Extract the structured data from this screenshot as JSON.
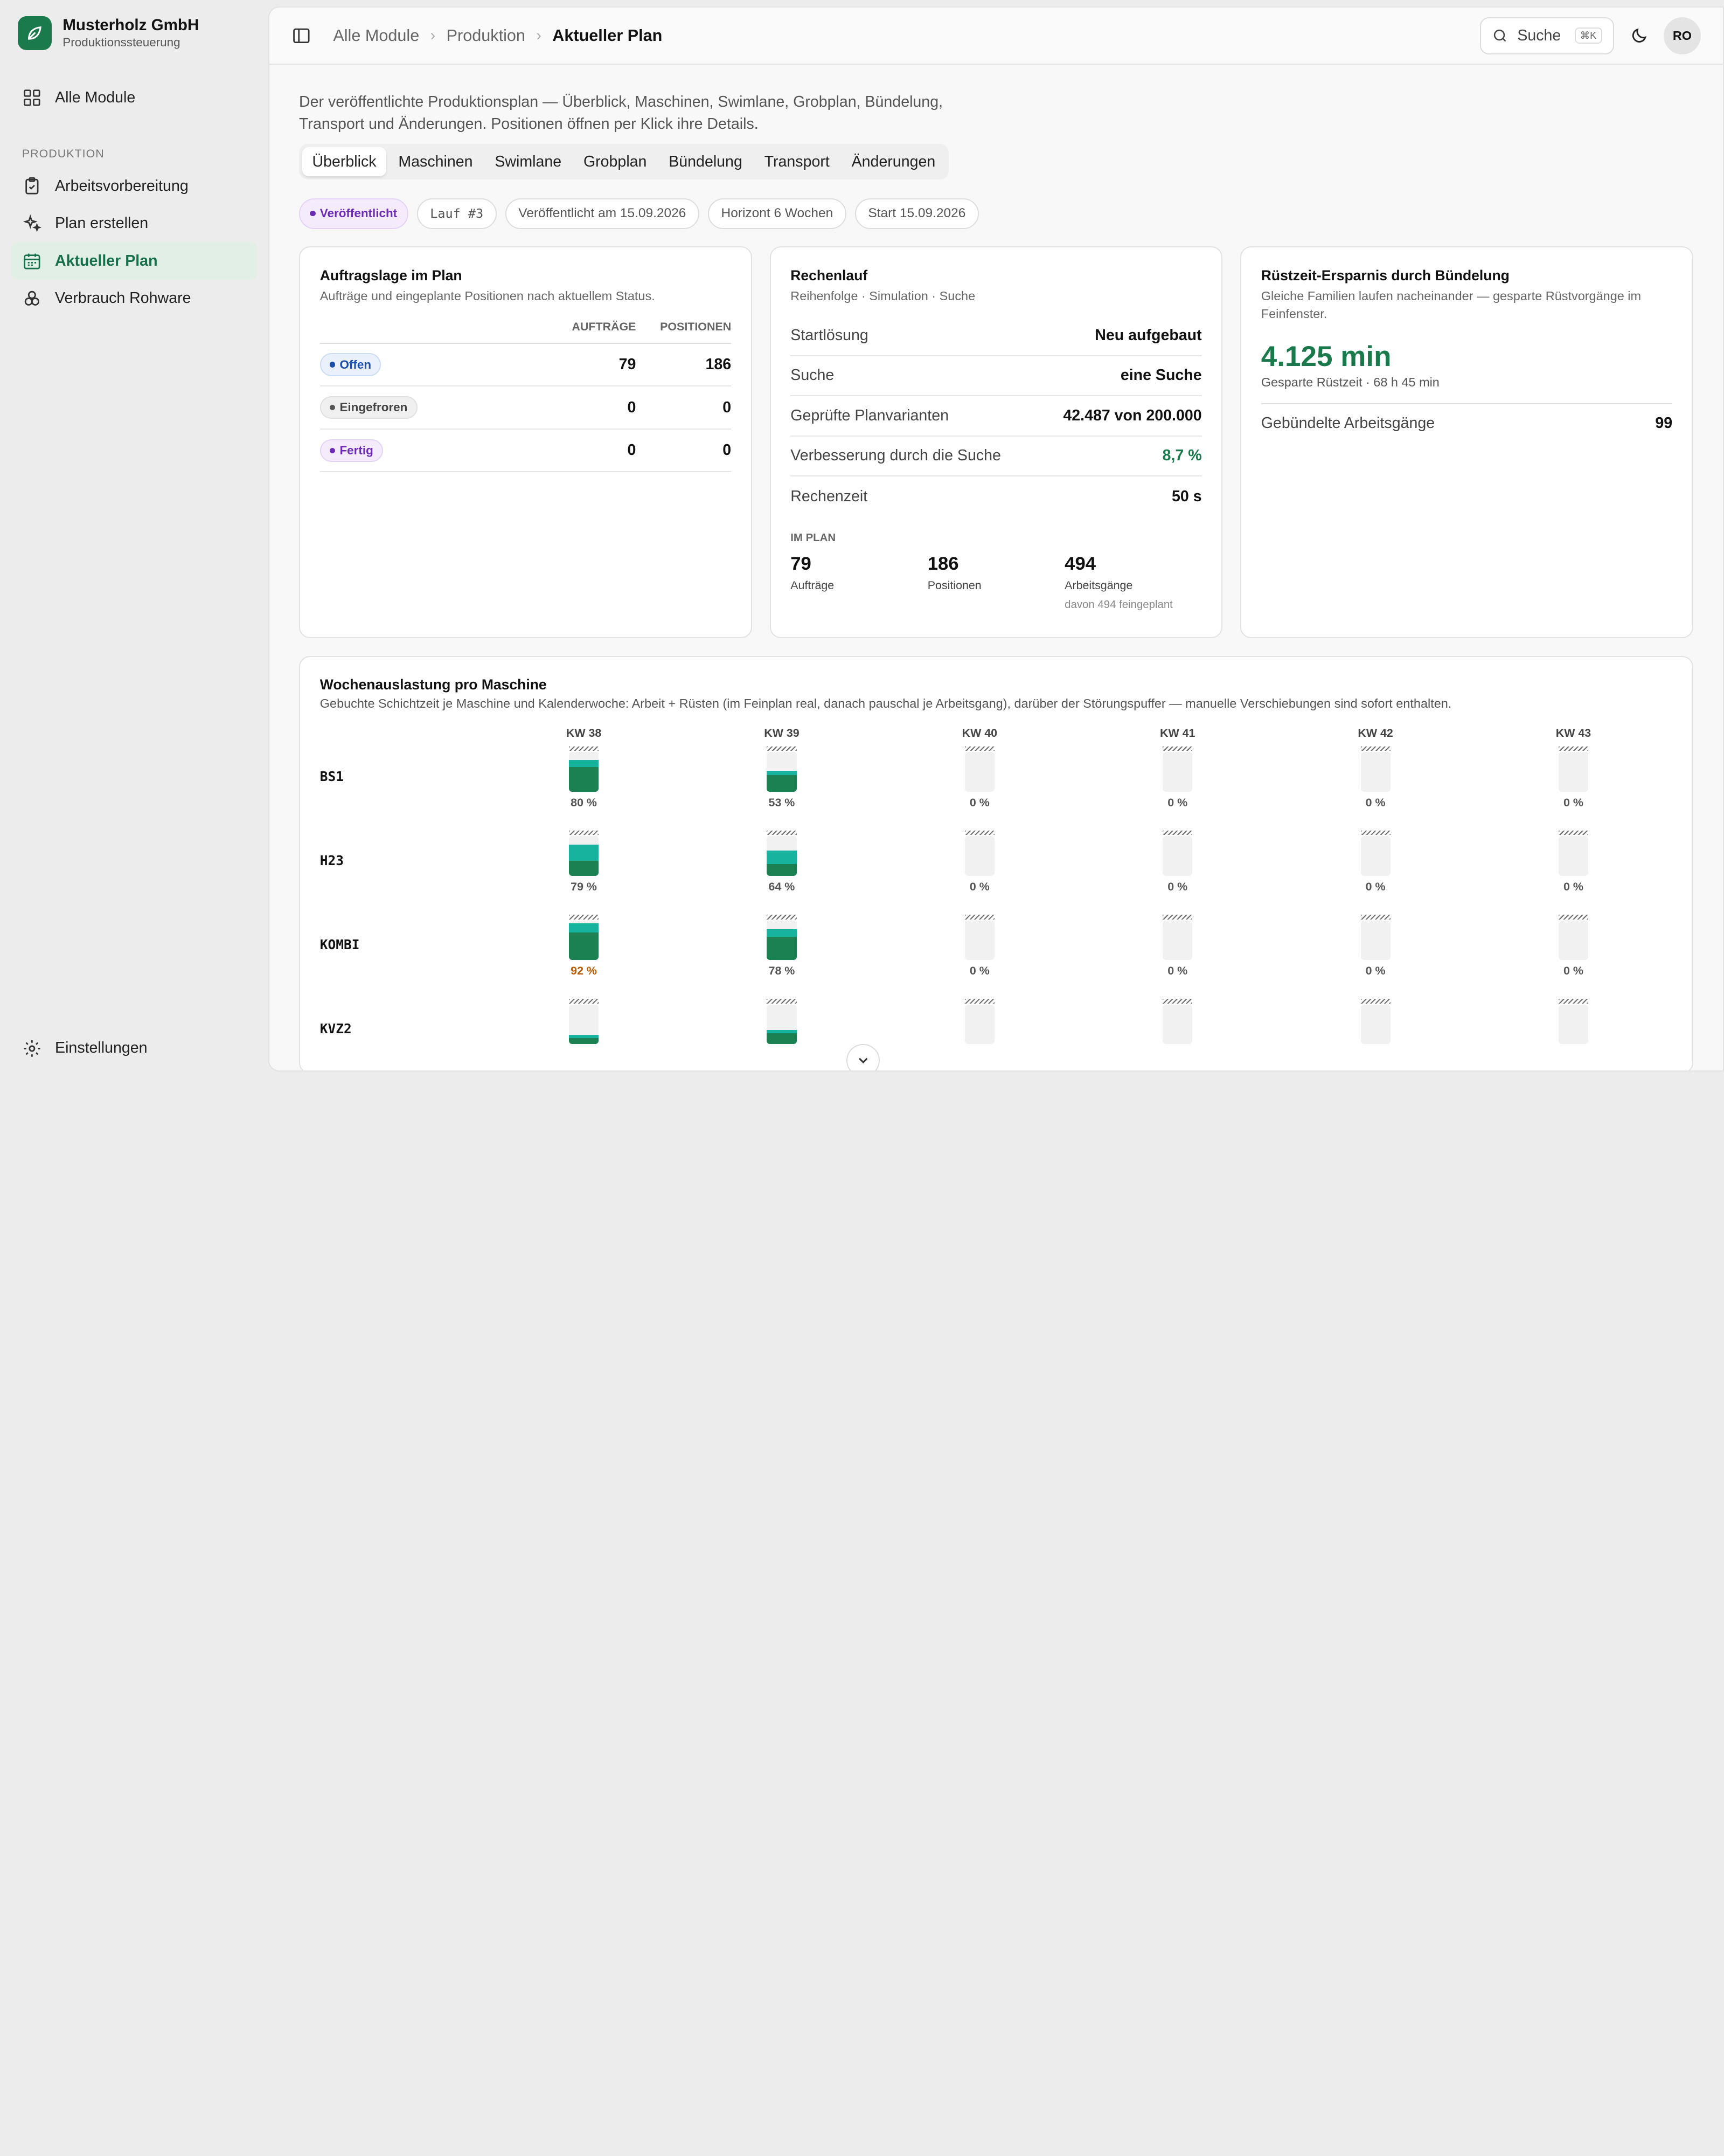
{
  "brand": {
    "name": "Musterholz GmbH",
    "subtitle": "Produktionssteuerung"
  },
  "nav": {
    "all_modules": "Alle Module",
    "section": "PRODUKTION",
    "items": [
      "Arbeitsvorbereitung",
      "Plan erstellen",
      "Aktueller Plan",
      "Verbrauch Rohware"
    ],
    "settings": "Einstellungen"
  },
  "breadcrumb": [
    "Alle Module",
    "Produktion",
    "Aktueller Plan"
  ],
  "search": {
    "label": "Suche",
    "shortcut": "⌘K"
  },
  "user": {
    "initials": "RO"
  },
  "intro": "Der veröffentlichte Produktionsplan — Überblick, Maschinen, Swimlane, Grobplan, Bündelung, Transport und Änderungen. Positionen öffnen per Klick ihre Details.",
  "tabs": [
    "Überblick",
    "Maschinen",
    "Swimlane",
    "Grobplan",
    "Bündelung",
    "Transport",
    "Änderungen"
  ],
  "chips": {
    "status": "Veröffentlicht",
    "run": "Lauf #3",
    "published": "Veröffentlicht am 15.09.2026",
    "horizon": "Horizont 6 Wochen",
    "start": "Start 15.09.2026"
  },
  "orders": {
    "title": "Auftragslage im Plan",
    "subtitle": "Aufträge und eingeplante Positionen nach aktuellem Status.",
    "col_orders": "AUFTRÄGE",
    "col_positions": "POSITIONEN",
    "rows": [
      {
        "status": "Offen",
        "orders": "79",
        "positions": "186"
      },
      {
        "status": "Eingefroren",
        "orders": "0",
        "positions": "0"
      },
      {
        "status": "Fertig",
        "orders": "0",
        "positions": "0"
      }
    ]
  },
  "run": {
    "title": "Rechenlauf",
    "subtitle": "Reihenfolge · Simulation · Suche",
    "rows": [
      {
        "k": "Startlösung",
        "v": "Neu aufgebaut"
      },
      {
        "k": "Suche",
        "v": "eine Suche"
      },
      {
        "k": "Geprüfte Planvarianten",
        "v": "42.487 von 200.000"
      },
      {
        "k": "Verbesserung durch die Suche",
        "v": "8,7 %"
      },
      {
        "k": "Rechenzeit",
        "v": "50 s"
      }
    ],
    "plan_label": "IM PLAN",
    "orders": "79",
    "orders_label": "Aufträge",
    "positions": "186",
    "positions_label": "Positionen",
    "ops": "494",
    "ops_label": "Arbeitsgänge",
    "ops_note": "davon 494 feingeplant"
  },
  "bundling": {
    "title": "Rüstzeit-Ersparnis durch Bündelung",
    "subtitle": "Gleiche Familien laufen nacheinander — gesparte Rüstvorgänge im Feinfenster.",
    "saved": "4.125 min",
    "saved_sub": "Gesparte Rüstzeit · 68 h 45 min",
    "bundled_label": "Gebündelte Arbeitsgänge",
    "bundled_value": "99"
  },
  "weekly": {
    "title": "Wochenauslastung pro Maschine",
    "subtitle": "Gebuchte Schichtzeit je Maschine und Kalenderwoche: Arbeit + Rüsten (im Feinplan real, danach pauschal je Arbeitsgang), darüber der Störungspuffer — manuelle Verschiebungen sind sofort enthalten.",
    "weeks": [
      "KW 38",
      "KW 39",
      "KW 40",
      "KW 41",
      "KW 42",
      "KW 43"
    ],
    "machines": [
      {
        "name": "BS1",
        "cells": [
          {
            "work": 0.62,
            "setup": 0.18,
            "pct": "80 %"
          },
          {
            "work": 0.42,
            "setup": 0.11,
            "pct": "53 %"
          },
          {
            "work": 0,
            "setup": 0,
            "pct": "0 %"
          },
          {
            "work": 0,
            "setup": 0,
            "pct": "0 %"
          },
          {
            "work": 0,
            "setup": 0,
            "pct": "0 %"
          },
          {
            "work": 0,
            "setup": 0,
            "pct": "0 %"
          }
        ]
      },
      {
        "name": "H23",
        "cells": [
          {
            "work": 0.38,
            "setup": 0.41,
            "pct": "79 %"
          },
          {
            "work": 0.3,
            "setup": 0.34,
            "pct": "64 %"
          },
          {
            "work": 0,
            "setup": 0,
            "pct": "0 %"
          },
          {
            "work": 0,
            "setup": 0,
            "pct": "0 %"
          },
          {
            "work": 0,
            "setup": 0,
            "pct": "0 %"
          },
          {
            "work": 0,
            "setup": 0,
            "pct": "0 %"
          }
        ]
      },
      {
        "name": "KOMBI",
        "cells": [
          {
            "work": 0.7,
            "setup": 0.22,
            "pct": "92 %",
            "warn": true
          },
          {
            "work": 0.58,
            "setup": 0.2,
            "pct": "78 %"
          },
          {
            "work": 0,
            "setup": 0,
            "pct": "0 %"
          },
          {
            "work": 0,
            "setup": 0,
            "pct": "0 %"
          },
          {
            "work": 0,
            "setup": 0,
            "pct": "0 %"
          },
          {
            "work": 0,
            "setup": 0,
            "pct": "0 %"
          }
        ]
      },
      {
        "name": "KVZ2",
        "cells": [
          {
            "work": 0.15,
            "setup": 0.08,
            "pct": ""
          },
          {
            "work": 0.28,
            "setup": 0.08,
            "pct": ""
          },
          {
            "work": 0,
            "setup": 0,
            "pct": ""
          },
          {
            "work": 0,
            "setup": 0,
            "pct": ""
          },
          {
            "work": 0,
            "setup": 0,
            "pct": ""
          },
          {
            "work": 0,
            "setup": 0,
            "pct": ""
          }
        ]
      }
    ]
  },
  "colors": {
    "accent": "#1a7a4c",
    "work": "#1b8152",
    "setup": "#16b49e",
    "warn": "#b95a00"
  }
}
